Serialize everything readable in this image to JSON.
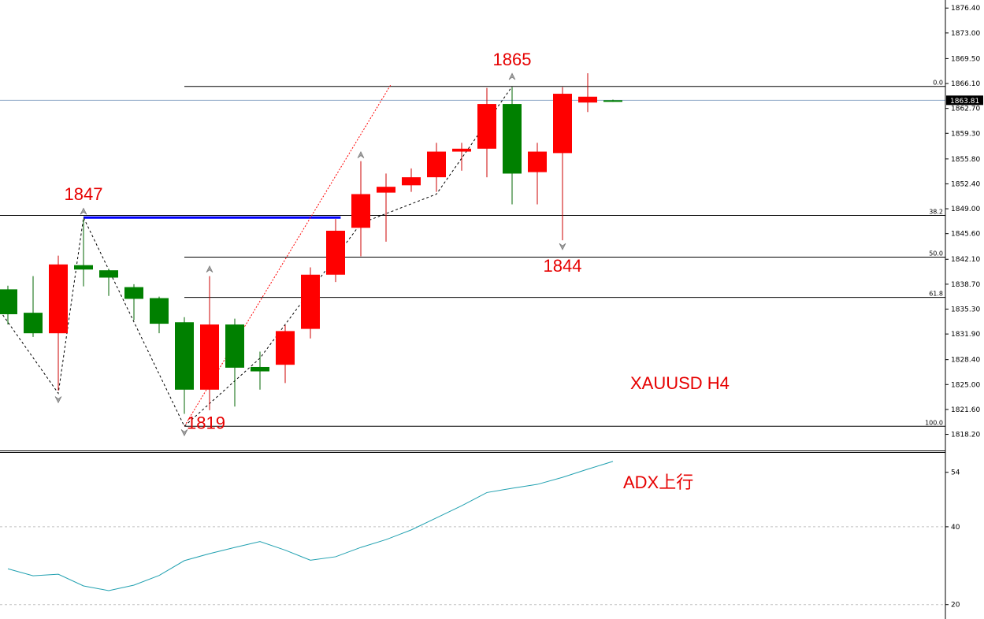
{
  "chart_data": {
    "type": "candlestick",
    "symbol_label": "XAUUSD  H4",
    "price_axis": {
      "range": [
        1816.0,
        1877.5
      ],
      "ticks": [
        "1876.40",
        "1873.00",
        "1869.50",
        "1866.10",
        "1862.70",
        "1859.30",
        "1855.80",
        "1852.40",
        "1849.00",
        "1845.60",
        "1842.10",
        "1838.70",
        "1835.30",
        "1831.90",
        "1828.40",
        "1825.00",
        "1821.60",
        "1818.20"
      ],
      "current_price": "1863.81",
      "current_value": 1863.81
    },
    "candles": [
      {
        "o": 1834.6,
        "h": 1838.5,
        "l": 1833.2,
        "c": 1838.0
      },
      {
        "o": 1832.0,
        "h": 1839.8,
        "l": 1831.5,
        "c": 1834.8
      },
      {
        "o": 1841.4,
        "h": 1842.6,
        "l": 1824.2,
        "c": 1832.0
      },
      {
        "o": 1840.7,
        "h": 1847.5,
        "l": 1838.4,
        "c": 1841.3
      },
      {
        "o": 1839.6,
        "h": 1840.8,
        "l": 1837.1,
        "c": 1840.6
      },
      {
        "o": 1836.7,
        "h": 1838.7,
        "l": 1833.8,
        "c": 1838.3
      },
      {
        "o": 1833.3,
        "h": 1837.0,
        "l": 1832.0,
        "c": 1836.8
      },
      {
        "o": 1824.3,
        "h": 1834.2,
        "l": 1821.0,
        "c": 1833.5
      },
      {
        "o": 1833.2,
        "h": 1839.8,
        "l": 1821.5,
        "c": 1824.3
      },
      {
        "o": 1827.3,
        "h": 1834.0,
        "l": 1822.0,
        "c": 1833.2
      },
      {
        "o": 1826.8,
        "h": 1829.5,
        "l": 1824.3,
        "c": 1827.4
      },
      {
        "o": 1832.3,
        "h": 1833.1,
        "l": 1825.2,
        "c": 1827.7
      },
      {
        "o": 1840.0,
        "h": 1841.0,
        "l": 1831.3,
        "c": 1832.6
      },
      {
        "o": 1846.0,
        "h": 1847.6,
        "l": 1839.0,
        "c": 1840.0
      },
      {
        "o": 1851.0,
        "h": 1855.5,
        "l": 1842.5,
        "c": 1846.4
      },
      {
        "o": 1852.0,
        "h": 1853.8,
        "l": 1844.5,
        "c": 1851.2
      },
      {
        "o": 1853.3,
        "h": 1854.5,
        "l": 1851.3,
        "c": 1852.2
      },
      {
        "o": 1856.8,
        "h": 1858.0,
        "l": 1851.3,
        "c": 1853.3
      },
      {
        "o": 1857.2,
        "h": 1858.0,
        "l": 1854.2,
        "c": 1856.8
      },
      {
        "o": 1863.3,
        "h": 1865.5,
        "l": 1853.3,
        "c": 1857.2
      },
      {
        "o": 1853.8,
        "h": 1865.6,
        "l": 1849.6,
        "c": 1863.3
      },
      {
        "o": 1856.8,
        "h": 1858.0,
        "l": 1849.6,
        "c": 1854.0
      },
      {
        "o": 1864.7,
        "h": 1865.6,
        "l": 1844.7,
        "c": 1856.6
      },
      {
        "o": 1864.3,
        "h": 1867.5,
        "l": 1862.2,
        "c": 1863.5
      },
      {
        "o": 1863.7,
        "h": 1863.9,
        "l": 1863.6,
        "c": 1863.81
      }
    ],
    "fibonacci": {
      "levels": [
        {
          "label": "0.0",
          "price": 1865.7
        },
        {
          "label": "38.2",
          "price": 1848.1
        },
        {
          "label": "50.0",
          "price": 1842.4
        },
        {
          "label": "61.8",
          "price": 1836.9
        },
        {
          "label": "100.0",
          "price": 1819.3
        }
      ]
    },
    "resistance_line": {
      "price": 1847.8
    },
    "zigzag": [
      {
        "i": -0.2,
        "p": 1834.5
      },
      {
        "i": 2.0,
        "p": 1823.8
      },
      {
        "i": 3.0,
        "p": 1847.8
      },
      {
        "i": 7.0,
        "p": 1819.3
      },
      {
        "i": 10.0,
        "p": 1828.6
      },
      {
        "i": 14.0,
        "p": 1847.0
      },
      {
        "i": 17.0,
        "p": 1851.0
      },
      {
        "i": 20.0,
        "p": 1865.7
      }
    ],
    "trend_line": {
      "from": {
        "i": 7.0,
        "p": 1819.3
      },
      "to": {
        "i": 15.2,
        "p": 1866.0
      }
    },
    "swing_markers": [
      {
        "i": 3.0,
        "p": 1847.8,
        "dir": "up"
      },
      {
        "i": 2.0,
        "p": 1823.8,
        "dir": "down"
      },
      {
        "i": 8.0,
        "p": 1839.9,
        "dir": "up"
      },
      {
        "i": 7.0,
        "p": 1819.3,
        "dir": "down"
      },
      {
        "i": 14.0,
        "p": 1855.5,
        "dir": "up"
      },
      {
        "i": 20.0,
        "p": 1866.2,
        "dir": "up"
      },
      {
        "i": 22.0,
        "p": 1844.7,
        "dir": "down"
      }
    ],
    "annotations": [
      {
        "text": "1847",
        "i": 3.0,
        "p": 1847.8,
        "pos": "above"
      },
      {
        "text": "1865",
        "i": 20.0,
        "p": 1866.2,
        "pos": "above"
      },
      {
        "text": "1819",
        "i": 7.0,
        "p": 1819.3,
        "pos": "right"
      },
      {
        "text": "1844",
        "i": 22.0,
        "p": 1844.7,
        "pos": "below"
      }
    ],
    "adx": {
      "label": "ADX上行",
      "axis_ticks": [
        "54",
        "40",
        "20"
      ],
      "axis_values": [
        54,
        40,
        20
      ],
      "gridlines": [
        40,
        20
      ],
      "values": [
        29.2,
        27.4,
        27.8,
        24.8,
        23.6,
        25.0,
        27.5,
        31.3,
        33.1,
        34.7,
        36.2,
        34.0,
        31.4,
        32.3,
        34.7,
        36.7,
        39.2,
        42.3,
        45.4,
        48.8,
        49.9,
        50.9,
        52.7,
        54.8,
        56.8
      ]
    },
    "colors": {
      "bull": "#008000",
      "bear": "#ff0000",
      "wick_bull": "#006400",
      "wick_bear": "#cc0000",
      "zigzag": "#000000",
      "trend": "#ff0000",
      "resistance": "#0000ff",
      "fib": "#000000",
      "adx": "#20a0b0",
      "annotation": "#e60000",
      "current_price_line": "#8fa8c8"
    }
  }
}
